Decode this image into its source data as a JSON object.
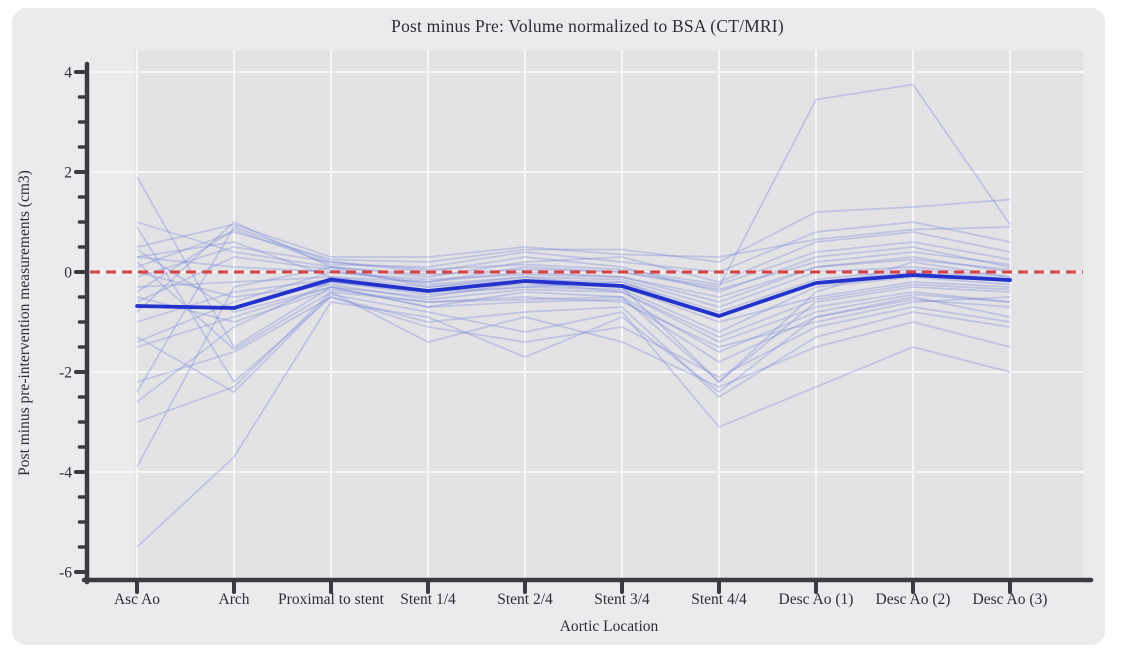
{
  "page": {
    "background": "#ffffff"
  },
  "chart_data": {
    "type": "line",
    "title": "Post minus Pre: Volume normalized to BSA (CT/MRI)",
    "xlabel": "Aortic Location",
    "ylabel": "Post minus pre-intervention measurements (cm3)",
    "categories": [
      "Asc Ao",
      "Arch",
      "Proximal to stent",
      "Stent 1/4",
      "Stent 2/4",
      "Stent 3/4",
      "Stent 4/4",
      "Desc Ao (1)",
      "Desc Ao (2)",
      "Desc Ao (3)"
    ],
    "ylim": [
      -6,
      4
    ],
    "ytick_values": [
      4,
      2,
      0,
      -2,
      -4,
      -6
    ],
    "ytick_labels": [
      "4",
      "2",
      "0",
      "-2",
      "-4",
      "-6"
    ],
    "y_minor_tick_step": 0.5,
    "grid": true,
    "legend": "none",
    "reference_line": {
      "name": "zero-line",
      "y": 0,
      "style": "dashed",
      "color": "#d64242"
    },
    "mean_series": {
      "name": "mean",
      "color": "#2331cd",
      "values": [
        -0.68,
        -0.72,
        -0.15,
        -0.38,
        -0.18,
        -0.28,
        -0.88,
        -0.22,
        -0.06,
        -0.16
      ]
    },
    "patient_series_color": "#6f82d9",
    "patient_series": [
      [
        1.9,
        -1.5,
        -0.3,
        -0.5,
        -0.2,
        -0.4,
        -1.4,
        -0.7,
        -0.4,
        -0.6
      ],
      [
        1.0,
        0.4,
        0.1,
        -0.05,
        0.05,
        0.0,
        -0.35,
        0.2,
        0.4,
        0.15
      ],
      [
        0.9,
        -2.2,
        -0.5,
        -1.1,
        -1.4,
        -1.1,
        -2.1,
        -1.1,
        -0.7,
        -1.0
      ],
      [
        0.5,
        0.95,
        0.3,
        0.3,
        0.5,
        0.35,
        0.3,
        0.65,
        0.85,
        0.9
      ],
      [
        0.45,
        -0.8,
        -0.3,
        -0.7,
        -0.6,
        -0.55,
        -1.8,
        -0.9,
        -0.55,
        -0.7
      ],
      [
        0.3,
        0.1,
        0.0,
        -0.15,
        -0.05,
        -0.1,
        -0.5,
        0.1,
        0.25,
        0.05
      ],
      [
        0.3,
        0.6,
        -0.1,
        -0.2,
        0.1,
        0.0,
        -0.3,
        3.45,
        3.75,
        0.95
      ],
      [
        0.2,
        -1.55,
        -0.4,
        -1.4,
        -0.9,
        -1.4,
        -2.3,
        -1.5,
        -1.0,
        -1.5
      ],
      [
        0.1,
        0.8,
        0.25,
        0.2,
        0.45,
        0.45,
        0.2,
        1.2,
        1.3,
        1.45
      ],
      [
        0.0,
        -0.5,
        -0.25,
        -0.55,
        -0.35,
        -0.4,
        -1.3,
        -0.55,
        -0.25,
        -0.35
      ],
      [
        -0.1,
        0.5,
        0.2,
        0.05,
        0.15,
        0.05,
        -0.25,
        0.4,
        0.6,
        0.25
      ],
      [
        -0.3,
        -0.2,
        -0.1,
        -0.3,
        -0.15,
        -0.2,
        -0.8,
        -0.15,
        0.05,
        -0.15
      ],
      [
        -0.4,
        0.85,
        0.15,
        0.1,
        0.4,
        0.2,
        0.0,
        0.8,
        1.0,
        0.6
      ],
      [
        -0.5,
        -1.0,
        -0.35,
        -0.6,
        -0.55,
        -0.5,
        -1.6,
        -0.8,
        -0.45,
        -0.6
      ],
      [
        -0.6,
        0.3,
        0.05,
        -0.25,
        -0.1,
        -0.15,
        -0.7,
        0.0,
        0.1,
        -0.1
      ],
      [
        -0.7,
        -0.7,
        -0.2,
        -0.45,
        -0.3,
        -0.35,
        -1.2,
        -0.3,
        -0.1,
        -0.25
      ],
      [
        -0.8,
        1.0,
        0.1,
        -0.1,
        0.2,
        0.3,
        -0.2,
        0.6,
        0.8,
        0.4
      ],
      [
        -1.0,
        -0.4,
        -0.15,
        -0.35,
        -0.25,
        -0.3,
        -1.0,
        -0.5,
        -0.2,
        -0.3
      ],
      [
        -1.3,
        -2.4,
        -0.45,
        -0.8,
        -1.2,
        -0.8,
        -3.1,
        -2.3,
        -1.5,
        -2.0
      ],
      [
        -1.4,
        -0.6,
        0.0,
        -0.2,
        0.0,
        -0.1,
        -0.6,
        0.1,
        0.3,
        0.0
      ],
      [
        -1.5,
        -0.9,
        -0.3,
        -0.7,
        -0.4,
        -0.5,
        -2.2,
        -0.6,
        -0.3,
        -0.4
      ],
      [
        -2.2,
        -1.6,
        -0.5,
        -1.0,
        -0.8,
        -0.7,
        -2.5,
        -1.3,
        -0.8,
        -1.1
      ],
      [
        -2.4,
        0.9,
        0.2,
        0.0,
        0.3,
        0.1,
        -0.4,
        0.3,
        0.5,
        0.1
      ],
      [
        -2.6,
        -1.1,
        -0.2,
        -0.4,
        -0.3,
        -0.2,
        -0.9,
        -0.2,
        0.0,
        -0.2
      ],
      [
        -3.0,
        -2.3,
        -0.4,
        -0.6,
        -0.5,
        -0.6,
        -1.5,
        -1.0,
        -0.6,
        -0.5
      ],
      [
        -3.9,
        -0.3,
        0.1,
        -0.3,
        -0.1,
        -0.3,
        -2.2,
        -0.4,
        0.2,
        -0.1
      ],
      [
        -5.5,
        -3.7,
        -0.6,
        -0.9,
        -1.7,
        -0.9,
        -2.4,
        -0.9,
        -0.5,
        -0.9
      ]
    ],
    "colors": {
      "plot_background": "#e3e2e5",
      "figure_background": "#ebeaed",
      "gridline": "#f7f6f8",
      "axis": "#3b3b40",
      "text": "#2e2e33"
    }
  }
}
